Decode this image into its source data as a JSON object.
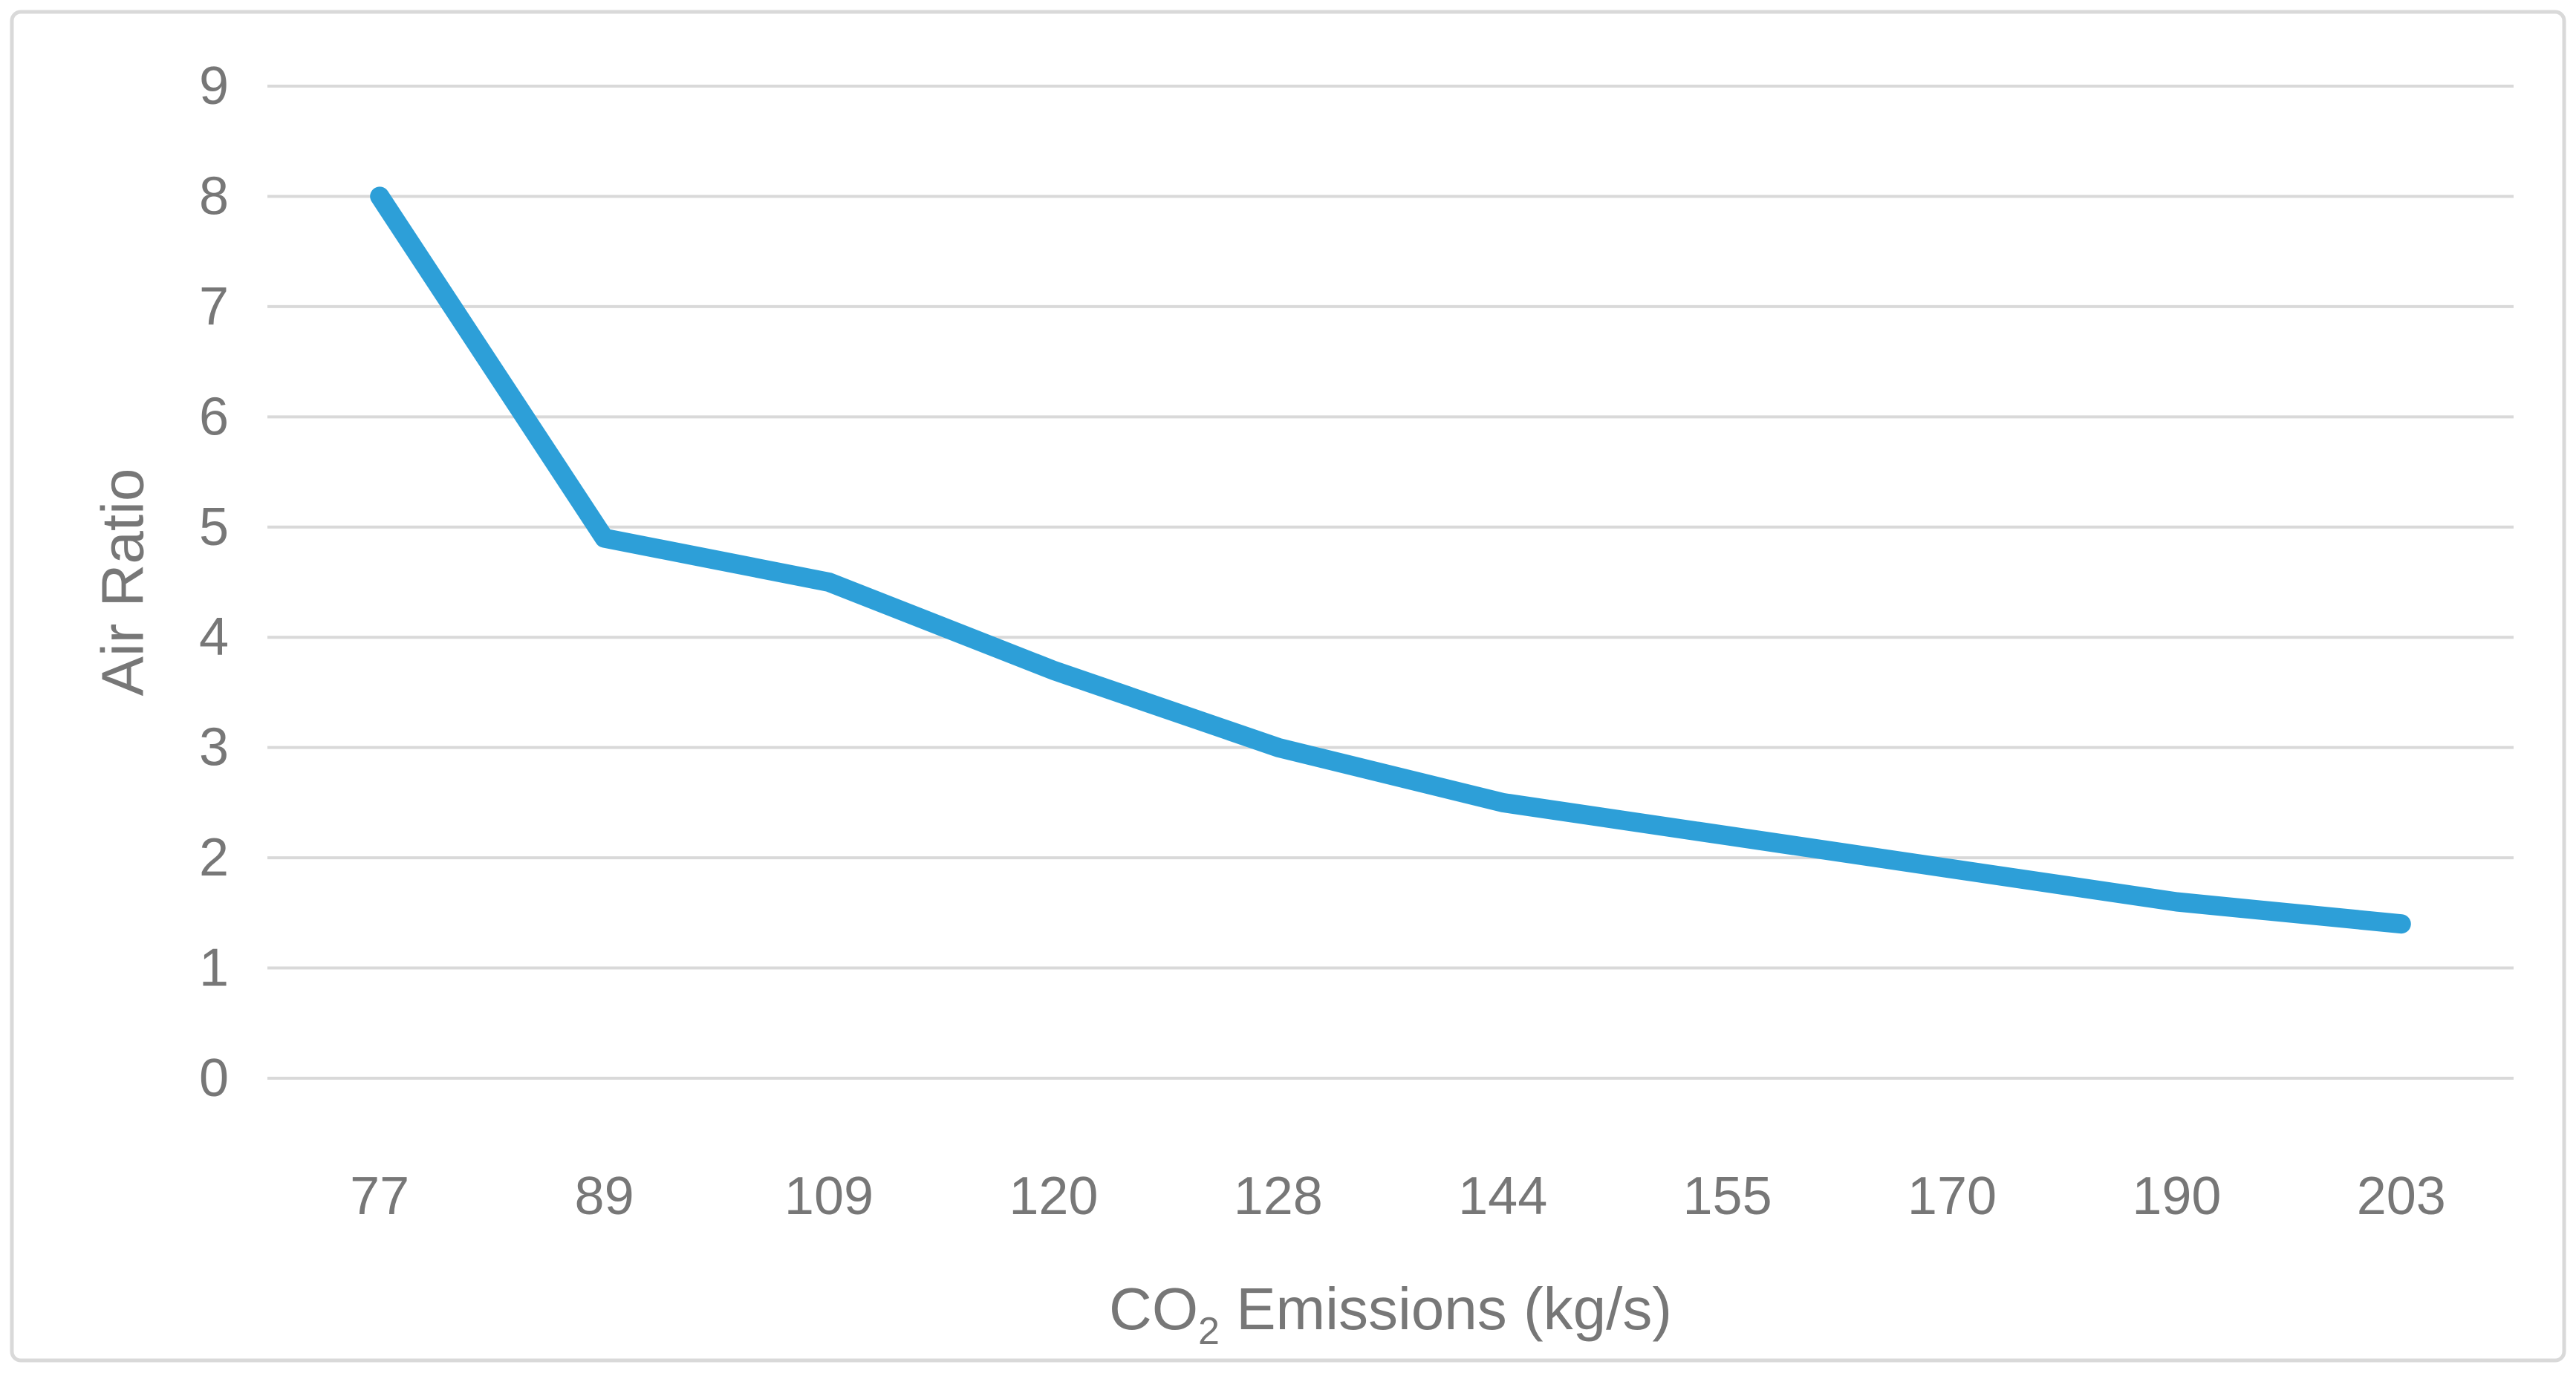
{
  "chart_data": {
    "type": "line",
    "categories": [
      "77",
      "89",
      "109",
      "120",
      "128",
      "144",
      "155",
      "170",
      "190",
      "203"
    ],
    "values": [
      8.0,
      4.9,
      4.5,
      3.7,
      3.0,
      2.5,
      2.2,
      1.9,
      1.6,
      1.4
    ],
    "title": "",
    "xlabel": {
      "prefix": "CO",
      "subscript": "2",
      "suffix": " Emissions (kg/s)"
    },
    "ylabel": "Air Ratio",
    "ylim": [
      0,
      9
    ],
    "y_ticks": [
      "0",
      "1",
      "2",
      "3",
      "4",
      "5",
      "6",
      "7",
      "8",
      "9"
    ],
    "grid": "horizontal",
    "legend": "none",
    "colors": {
      "line": "#2D9FD8",
      "gridline": "#D9D9D9",
      "border": "#D9D9D9",
      "tick_text": "#777777",
      "axis_title_text": "#777777",
      "background": "#FFFFFF"
    }
  }
}
